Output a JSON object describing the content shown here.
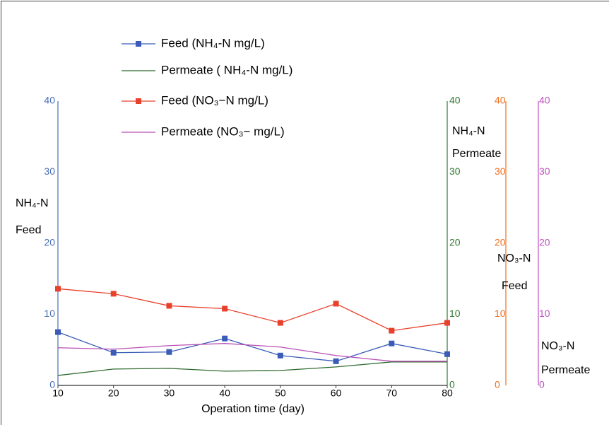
{
  "chart_data": {
    "type": "line",
    "xlabel": "Operation time (day)",
    "x": [
      10,
      20,
      30,
      40,
      50,
      60,
      70,
      80
    ],
    "xlim": [
      10,
      80
    ],
    "xticks": [
      10,
      20,
      30,
      40,
      50,
      60,
      70,
      80
    ],
    "ylabel": [
      "NH₄-N",
      "Feed"
    ],
    "ylim": [
      0,
      40
    ],
    "yticks": [
      0,
      10,
      20,
      30,
      40
    ],
    "ycolor": "#4a6fb5",
    "y2label": [
      "NH₄-N",
      "Permeate"
    ],
    "y2lim": [
      0,
      40
    ],
    "y2ticks": [
      0,
      10,
      20,
      30,
      40
    ],
    "y2color": "#2f7a2f",
    "y3label": [
      "NO₃-N",
      "Feed"
    ],
    "y3lim": [
      0,
      40
    ],
    "y3ticks": [
      0,
      10,
      20,
      30,
      40
    ],
    "y3color": "#f07020",
    "y4label": [
      "NO₃-N",
      "Permeate"
    ],
    "y4lim": [
      0,
      40
    ],
    "y4ticks": [
      0,
      10,
      20,
      30,
      40
    ],
    "y4color": "#c050c0",
    "series": [
      {
        "name": "Feed (NH₄-N mg/L)",
        "color": "#3a5cb8",
        "marker": "square",
        "axis": "y",
        "values": [
          7.5,
          4.6,
          4.7,
          6.6,
          4.2,
          3.4,
          5.9,
          4.4
        ]
      },
      {
        "name": "Permeate ( NH₄-N  mg/L)",
        "color": "#2e6b2e",
        "marker": "none",
        "axis": "y2",
        "values": [
          1.4,
          2.3,
          2.4,
          2.0,
          2.1,
          2.6,
          3.3,
          3.3
        ]
      },
      {
        "name": "Feed (NO₃−N mg/L)",
        "color": "#e8402a",
        "marker": "square",
        "axis": "y3",
        "values": [
          13.6,
          12.9,
          11.2,
          10.8,
          8.8,
          11.5,
          7.7,
          8.8
        ]
      },
      {
        "name": "Permeate (NO₃− mg/L)",
        "color": "#b94fb5",
        "marker": "none",
        "axis": "y4",
        "values": [
          5.3,
          5.1,
          5.6,
          5.9,
          5.4,
          4.2,
          3.4,
          3.4
        ]
      }
    ]
  }
}
